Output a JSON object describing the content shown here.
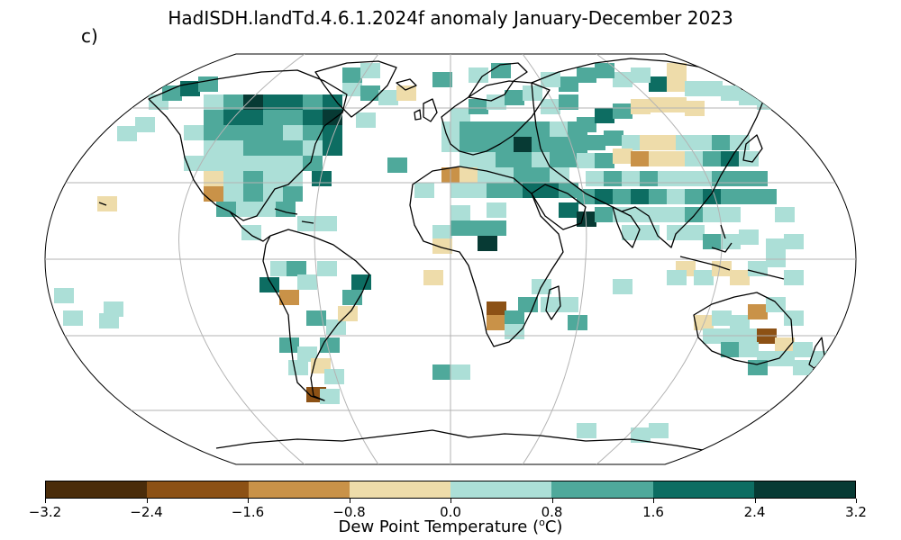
{
  "title": "HadISDH.landTd.4.6.1.2024f anomaly January-December 2023",
  "panel_label": "c)",
  "colorbar": {
    "label_prefix": "Dew Point Temperature (",
    "label_sup": "o",
    "label_suffix": "C)",
    "ticks": [
      "−3.2",
      "−2.4",
      "−1.6",
      "−0.8",
      "0.0",
      "0.8",
      "1.6",
      "2.4",
      "3.2"
    ],
    "colors": [
      "#4a2c0a",
      "#8c5115",
      "#c99248",
      "#eedcaa",
      "#acdfd7",
      "#4fa99b",
      "#0d6d62",
      "#073a34"
    ]
  },
  "projection": "Robinson",
  "map_data": {
    "legend_classes": [
      {
        "range": "-3.2 to -2.4",
        "color": "#4a2c0a"
      },
      {
        "range": "-2.4 to -1.6",
        "color": "#8c5115"
      },
      {
        "range": "-1.6 to -0.8",
        "color": "#c99248"
      },
      {
        "range": "-0.8 to 0.0",
        "color": "#eedcaa"
      },
      {
        "range": "0.0 to 0.8",
        "color": "#acdfd7"
      },
      {
        "range": "0.8 to 1.6",
        "color": "#4fa99b"
      },
      {
        "range": "1.6 to 2.4",
        "color": "#0d6d62"
      },
      {
        "range": "2.4 to 3.2",
        "color": "#073a34"
      }
    ]
  }
}
